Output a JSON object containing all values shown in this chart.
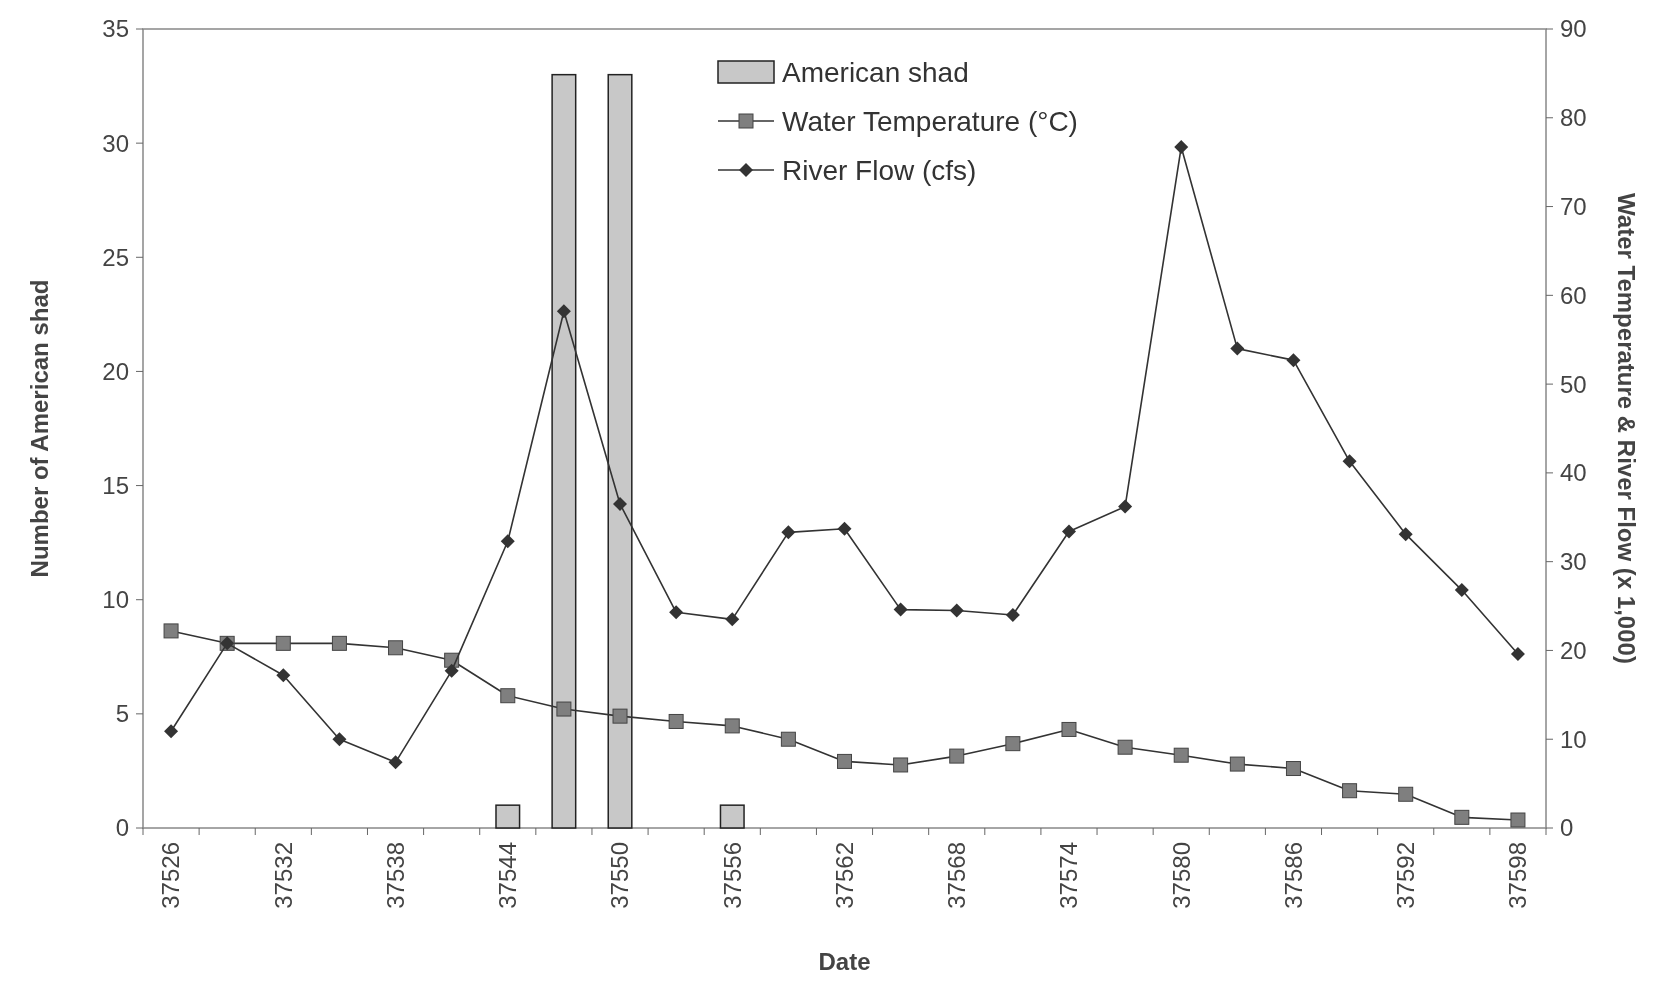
{
  "chart_data": {
    "type": "bar",
    "xlabel": "Date",
    "ylabel": "Number of American shad",
    "y2label": "Water Temperature & River Flow (x 1,000)",
    "categories": [
      "37526",
      null,
      "37532",
      null,
      "37538",
      null,
      "37544",
      null,
      "37550",
      null,
      "37556",
      null,
      "37562",
      null,
      "37568",
      null,
      "37574",
      null,
      "37580",
      null,
      "37586",
      null,
      "37592",
      null,
      "37598"
    ],
    "series": [
      {
        "name": "American shad",
        "color": "#c8c8c8",
        "values": [
          null,
          null,
          null,
          null,
          null,
          null,
          1,
          33,
          33,
          null,
          1,
          null,
          null,
          null,
          null,
          null,
          null,
          null,
          null,
          null,
          null,
          null,
          null,
          null,
          null
        ]
      },
      {
        "name": "Water Temperature (°C)",
        "type": "line",
        "axis": "y2",
        "marker": "square",
        "color": "#7f7f7f",
        "values": [
          22.2,
          20.8,
          20.8,
          20.8,
          20.3,
          18.9,
          14.9,
          13.4,
          12.6,
          12.0,
          11.5,
          10.0,
          7.5,
          7.1,
          8.1,
          9.5,
          11.1,
          9.1,
          8.2,
          7.2,
          6.7,
          4.2,
          3.8,
          1.2,
          0.9
        ]
      },
      {
        "name": "River Flow (cfs)",
        "type": "line",
        "axis": "y2",
        "marker": "diamond",
        "color": "#333333",
        "values": [
          10.9,
          20.8,
          17.2,
          10.0,
          7.4,
          17.7,
          32.3,
          58.2,
          36.5,
          24.3,
          23.5,
          33.3,
          33.7,
          24.6,
          24.5,
          24.0,
          33.4,
          36.2,
          76.7,
          54.0,
          52.7,
          41.3,
          33.1,
          26.8,
          19.6
        ]
      }
    ],
    "ylim": [
      0,
      35
    ],
    "yticks": [
      0,
      5,
      10,
      15,
      20,
      25,
      30,
      35
    ],
    "y2lim": [
      0,
      90
    ],
    "y2ticks": [
      0,
      10,
      20,
      30,
      40,
      50,
      60,
      70,
      80,
      90
    ],
    "legend": "top",
    "grid": false
  }
}
